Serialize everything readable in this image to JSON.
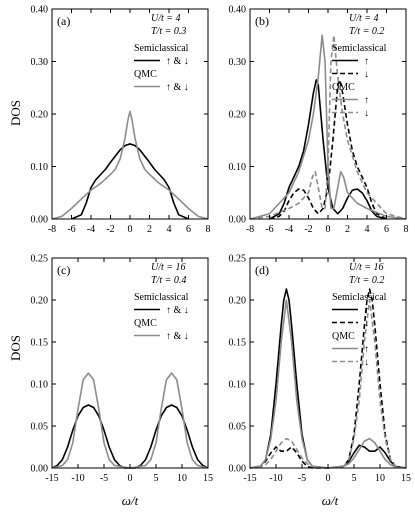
{
  "figure": {
    "ylabel": "DOS",
    "xlabel": "ω/t"
  },
  "chart_data": [
    {
      "panel": "(a)",
      "type": "line",
      "params": [
        "U/t = 4",
        "T/t = 0.3"
      ],
      "xlim": [
        -8,
        8
      ],
      "ylim": [
        0,
        0.4
      ],
      "xticks": [
        -8,
        -6,
        -4,
        -2,
        0,
        2,
        4,
        6,
        8
      ],
      "yticks": [
        0.0,
        0.1,
        0.2,
        0.3,
        0.4
      ],
      "ytick_labels": [
        "0.00",
        "0.10",
        "0.20",
        "0.30",
        "0.40"
      ],
      "legend": [
        {
          "heading": "Semiclassical",
          "color": "#000000",
          "dash": "solid",
          "label": "↑ & ↓"
        },
        {
          "heading": "QMC",
          "color": "#8c8c8c",
          "dash": "solid",
          "label": "↑ & ↓"
        }
      ],
      "series": [
        {
          "color": "#000000",
          "dash": "solid",
          "width": 1.6,
          "x": [
            -6,
            -5,
            -4.5,
            -4,
            -3.5,
            -3,
            -2.5,
            -2,
            -1.5,
            -1,
            -0.5,
            0,
            0.5,
            1,
            1.5,
            2,
            2.5,
            3,
            3.5,
            4,
            4.5,
            5,
            6
          ],
          "y": [
            0.0,
            0.008,
            0.03,
            0.06,
            0.075,
            0.085,
            0.095,
            0.108,
            0.12,
            0.132,
            0.14,
            0.143,
            0.14,
            0.132,
            0.12,
            0.108,
            0.095,
            0.085,
            0.075,
            0.06,
            0.03,
            0.008,
            0.0
          ]
        },
        {
          "color": "#8c8c8c",
          "dash": "solid",
          "width": 1.6,
          "x": [
            -8,
            -7,
            -6,
            -5,
            -4,
            -3,
            -2,
            -1.5,
            -1,
            -0.5,
            -0.2,
            0,
            0.2,
            0.5,
            1,
            1.5,
            2,
            3,
            4,
            5,
            6,
            7,
            8
          ],
          "y": [
            0.0,
            0.005,
            0.02,
            0.038,
            0.055,
            0.068,
            0.085,
            0.095,
            0.115,
            0.155,
            0.19,
            0.205,
            0.19,
            0.155,
            0.115,
            0.095,
            0.085,
            0.068,
            0.055,
            0.038,
            0.02,
            0.005,
            0.0
          ]
        }
      ]
    },
    {
      "panel": "(b)",
      "type": "line",
      "params": [
        "U/t = 4",
        "T/t = 0.2"
      ],
      "xlim": [
        -8,
        8
      ],
      "ylim": [
        0,
        0.4
      ],
      "xticks": [
        -8,
        -6,
        -4,
        -2,
        0,
        2,
        4,
        6,
        8
      ],
      "yticks": [
        0.0,
        0.1,
        0.2,
        0.3,
        0.4
      ],
      "ytick_labels": [
        "0.00",
        "0.10",
        "0.20",
        "0.30",
        "0.40"
      ],
      "legend": [
        {
          "heading": "Semiclassical",
          "color": "#000000",
          "dash": "solid",
          "label": "↑"
        },
        {
          "heading": "",
          "color": "#000000",
          "dash": "dashed",
          "label": "↓"
        },
        {
          "heading": "QMC",
          "color": "#8c8c8c",
          "dash": "solid",
          "label": "↑"
        },
        {
          "heading": "",
          "color": "#8c8c8c",
          "dash": "dashed",
          "label": "↓"
        }
      ],
      "series": [
        {
          "color": "#000000",
          "dash": "solid",
          "width": 1.6,
          "x": [
            -6,
            -5,
            -4.5,
            -4,
            -3.5,
            -3,
            -2.5,
            -2,
            -1.5,
            -1.2,
            -1,
            -0.5,
            0,
            0.5,
            1,
            1.5,
            2,
            2.5,
            3,
            3.5,
            4,
            4.5,
            5,
            6
          ],
          "y": [
            0.0,
            0.01,
            0.03,
            0.06,
            0.08,
            0.1,
            0.13,
            0.18,
            0.24,
            0.265,
            0.255,
            0.15,
            0.06,
            0.02,
            0.01,
            0.02,
            0.04,
            0.055,
            0.057,
            0.05,
            0.035,
            0.015,
            0.005,
            0.0
          ]
        },
        {
          "color": "#000000",
          "dash": "dashed",
          "width": 1.6,
          "x": [
            -6,
            -5,
            -4.5,
            -4,
            -3.5,
            -3,
            -2.5,
            -2,
            -1.5,
            -1,
            -0.5,
            0,
            0.5,
            1,
            1.2,
            1.5,
            2,
            2.5,
            3,
            3.5,
            4,
            4.5,
            5,
            6
          ],
          "y": [
            0.0,
            0.005,
            0.015,
            0.035,
            0.05,
            0.057,
            0.055,
            0.04,
            0.02,
            0.01,
            0.02,
            0.06,
            0.15,
            0.255,
            0.265,
            0.24,
            0.18,
            0.13,
            0.1,
            0.08,
            0.06,
            0.03,
            0.01,
            0.0
          ]
        },
        {
          "color": "#8c8c8c",
          "dash": "solid",
          "width": 1.6,
          "x": [
            -8,
            -6,
            -4,
            -3,
            -2,
            -1.5,
            -1,
            -0.6,
            -0.3,
            0,
            0.3,
            0.6,
            1,
            1.3,
            1.6,
            2,
            3,
            4,
            6,
            8
          ],
          "y": [
            0.0,
            0.01,
            0.05,
            0.09,
            0.15,
            0.2,
            0.27,
            0.35,
            0.3,
            0.1,
            0.02,
            0.02,
            0.06,
            0.09,
            0.08,
            0.05,
            0.03,
            0.02,
            0.005,
            0.0
          ]
        },
        {
          "color": "#8c8c8c",
          "dash": "dashed",
          "width": 1.6,
          "x": [
            -8,
            -6,
            -4,
            -3,
            -2,
            -1.6,
            -1.3,
            -1,
            -0.6,
            -0.3,
            0,
            0.3,
            0.6,
            1,
            1.5,
            2,
            3,
            4,
            6,
            8
          ],
          "y": [
            0.0,
            0.005,
            0.02,
            0.03,
            0.05,
            0.08,
            0.09,
            0.06,
            0.02,
            0.02,
            0.1,
            0.3,
            0.35,
            0.27,
            0.2,
            0.15,
            0.09,
            0.05,
            0.01,
            0.0
          ]
        }
      ]
    },
    {
      "panel": "(c)",
      "type": "line",
      "params": [
        "U/t = 16",
        "T/t = 0.4"
      ],
      "xlim": [
        -15,
        15
      ],
      "ylim": [
        0,
        0.25
      ],
      "xticks": [
        -15,
        -10,
        -5,
        0,
        5,
        10,
        15
      ],
      "yticks": [
        0.0,
        0.05,
        0.1,
        0.15,
        0.2,
        0.25
      ],
      "ytick_labels": [
        "0.00",
        "0.05",
        "0.10",
        "0.15",
        "0.20",
        "0.25"
      ],
      "legend": [
        {
          "heading": "Semiclassical",
          "color": "#000000",
          "dash": "solid",
          "label": "↑ & ↓"
        },
        {
          "heading": "QMC",
          "color": "#8c8c8c",
          "dash": "solid",
          "label": "↑ & ↓"
        }
      ],
      "series": [
        {
          "color": "#000000",
          "dash": "solid",
          "width": 1.6,
          "x": [
            -15,
            -14,
            -13,
            -12,
            -11,
            -10,
            -9,
            -8,
            -7,
            -6,
            -5,
            -4,
            -3,
            -2,
            -1,
            0,
            1,
            2,
            3,
            4,
            5,
            6,
            7,
            8,
            9,
            10,
            11,
            12,
            13,
            14,
            15
          ],
          "y": [
            0.0,
            0.003,
            0.01,
            0.025,
            0.045,
            0.062,
            0.072,
            0.075,
            0.072,
            0.062,
            0.045,
            0.025,
            0.01,
            0.003,
            0.0,
            0.0,
            0.0,
            0.003,
            0.01,
            0.025,
            0.045,
            0.062,
            0.072,
            0.075,
            0.072,
            0.062,
            0.045,
            0.025,
            0.01,
            0.003,
            0.0
          ]
        },
        {
          "color": "#8c8c8c",
          "dash": "solid",
          "width": 1.6,
          "x": [
            -15,
            -13,
            -12,
            -11,
            -10,
            -9,
            -8,
            -7,
            -6,
            -5,
            -4,
            -3,
            0,
            3,
            4,
            5,
            6,
            7,
            8,
            9,
            10,
            11,
            12,
            13,
            15
          ],
          "y": [
            0.0,
            0.003,
            0.01,
            0.03,
            0.07,
            0.105,
            0.113,
            0.105,
            0.07,
            0.03,
            0.01,
            0.003,
            0.0,
            0.003,
            0.01,
            0.03,
            0.07,
            0.105,
            0.113,
            0.105,
            0.07,
            0.03,
            0.01,
            0.003,
            0.0
          ]
        }
      ]
    },
    {
      "panel": "(d)",
      "type": "line",
      "params": [
        "U/t = 16",
        "T/t = 0.2"
      ],
      "xlim": [
        -15,
        15
      ],
      "ylim": [
        0,
        0.25
      ],
      "xticks": [
        -15,
        -10,
        -5,
        0,
        5,
        10,
        15
      ],
      "yticks": [
        0.0,
        0.05,
        0.1,
        0.15,
        0.2,
        0.25
      ],
      "ytick_labels": [
        "0.00",
        "0.05",
        "0.10",
        "0.15",
        "0.20",
        "0.25"
      ],
      "legend": [
        {
          "heading": "Semiclassical",
          "color": "#000000",
          "dash": "solid",
          "label": "↑"
        },
        {
          "heading": "",
          "color": "#000000",
          "dash": "dashed",
          "label": "↓"
        },
        {
          "heading": "QMC",
          "color": "#8c8c8c",
          "dash": "solid",
          "label": "↑"
        },
        {
          "heading": "",
          "color": "#8c8c8c",
          "dash": "dashed",
          "label": "↓"
        }
      ],
      "series": [
        {
          "color": "#000000",
          "dash": "solid",
          "width": 1.6,
          "x": [
            -15,
            -13,
            -12,
            -11,
            -10,
            -9,
            -8.5,
            -8,
            -7.5,
            -7,
            -6,
            -5,
            -4,
            -3,
            0,
            3,
            4,
            5,
            6,
            7,
            8,
            9,
            10,
            11,
            12,
            13,
            15
          ],
          "y": [
            0.0,
            0.002,
            0.01,
            0.04,
            0.1,
            0.17,
            0.2,
            0.213,
            0.2,
            0.17,
            0.1,
            0.04,
            0.01,
            0.002,
            0.0,
            0.002,
            0.008,
            0.018,
            0.027,
            0.025,
            0.02,
            0.02,
            0.025,
            0.018,
            0.008,
            0.002,
            0.0
          ]
        },
        {
          "color": "#000000",
          "dash": "dashed",
          "width": 1.6,
          "x": [
            -15,
            -13,
            -12,
            -11,
            -10,
            -9,
            -8,
            -7,
            -6,
            -5,
            -4,
            -3,
            0,
            3,
            4,
            5,
            6,
            7,
            7.5,
            8,
            8.5,
            9,
            10,
            11,
            12,
            13,
            15
          ],
          "y": [
            0.0,
            0.002,
            0.008,
            0.018,
            0.025,
            0.02,
            0.02,
            0.025,
            0.018,
            0.008,
            0.002,
            0.0,
            0.0,
            0.002,
            0.01,
            0.04,
            0.1,
            0.17,
            0.2,
            0.213,
            0.2,
            0.17,
            0.1,
            0.04,
            0.01,
            0.002,
            0.0
          ]
        },
        {
          "color": "#8c8c8c",
          "dash": "solid",
          "width": 1.6,
          "x": [
            -15,
            -13,
            -12,
            -11,
            -10,
            -9,
            -8,
            -7,
            -6,
            -5,
            -4,
            -3,
            0,
            3,
            4,
            5,
            6,
            7,
            8,
            9,
            10,
            11,
            12,
            13,
            15
          ],
          "y": [
            0.0,
            0.002,
            0.01,
            0.035,
            0.08,
            0.15,
            0.2,
            0.15,
            0.08,
            0.035,
            0.01,
            0.002,
            0.0,
            0.002,
            0.005,
            0.012,
            0.022,
            0.032,
            0.035,
            0.03,
            0.02,
            0.01,
            0.004,
            0.001,
            0.0
          ]
        },
        {
          "color": "#8c8c8c",
          "dash": "dashed",
          "width": 1.6,
          "x": [
            -15,
            -13,
            -12,
            -11,
            -10,
            -9,
            -8,
            -7,
            -6,
            -5,
            -4,
            -3,
            0,
            3,
            4,
            5,
            6,
            7,
            8,
            9,
            10,
            11,
            12,
            13,
            15
          ],
          "y": [
            0.0,
            0.001,
            0.004,
            0.01,
            0.02,
            0.03,
            0.035,
            0.032,
            0.022,
            0.012,
            0.005,
            0.002,
            0.0,
            0.002,
            0.01,
            0.035,
            0.08,
            0.15,
            0.2,
            0.15,
            0.08,
            0.035,
            0.01,
            0.002,
            0.0
          ]
        }
      ]
    }
  ]
}
